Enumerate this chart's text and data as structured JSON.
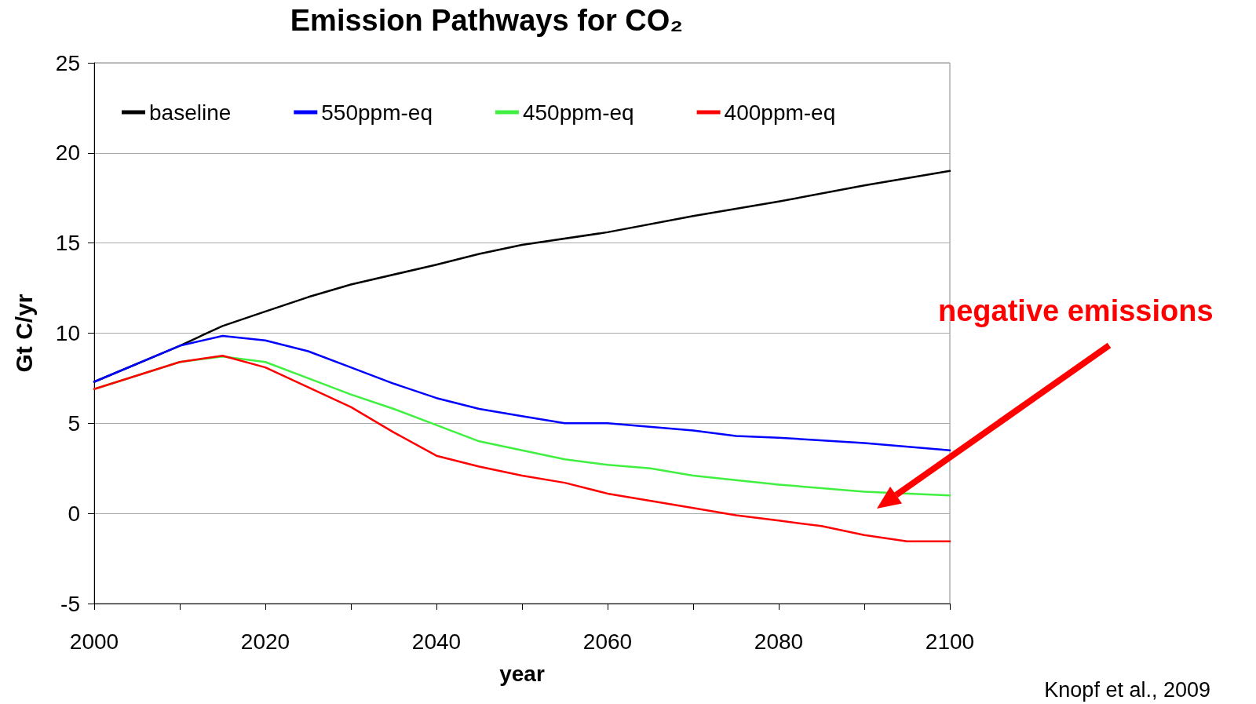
{
  "chart_data": {
    "type": "line",
    "title": "Emission Pathways for CO₂",
    "xlabel": "year",
    "ylabel": "Gt C/yr",
    "xlim": [
      2000,
      2100
    ],
    "xticks": [
      2000,
      {
        "value": 2010,
        "label": null
      },
      2020,
      {
        "value": 2030,
        "label": null
      },
      2040,
      {
        "value": 2050,
        "label": null
      },
      2060,
      {
        "value": 2070,
        "label": null
      },
      2080,
      {
        "value": 2090,
        "label": null
      },
      2100
    ],
    "ylim": [
      -5,
      25
    ],
    "yticks": [
      -5,
      0,
      5,
      10,
      15,
      20,
      25
    ],
    "grid": "y",
    "legend": "top",
    "marker": "none",
    "line_style": "solid",
    "series": [
      {
        "name": "baseline",
        "color": "#000000",
        "x": [
          2000,
          2010,
          2015,
          2020,
          2025,
          2030,
          2040,
          2045,
          2050,
          2060,
          2070,
          2080,
          2090,
          2100
        ],
        "values": [
          7.3,
          9.3,
          10.4,
          11.2,
          12.0,
          12.7,
          13.8,
          14.4,
          14.9,
          15.6,
          16.5,
          17.3,
          18.2,
          19.0
        ]
      },
      {
        "name": "550ppm-eq",
        "color": "#0000ff",
        "x": [
          2000,
          2010,
          2015,
          2020,
          2025,
          2030,
          2035,
          2040,
          2045,
          2050,
          2055,
          2060,
          2070,
          2075,
          2080,
          2090,
          2100
        ],
        "values": [
          7.3,
          9.3,
          9.85,
          9.6,
          9.0,
          8.1,
          7.2,
          6.4,
          5.8,
          5.4,
          5.0,
          5.0,
          4.6,
          4.3,
          4.2,
          3.9,
          3.5
        ]
      },
      {
        "name": "450ppm-eq",
        "color": "#40f040",
        "x": [
          2000,
          2010,
          2015,
          2020,
          2025,
          2030,
          2035,
          2040,
          2045,
          2050,
          2055,
          2060,
          2065,
          2070,
          2080,
          2090,
          2100
        ],
        "values": [
          6.9,
          8.4,
          8.7,
          8.4,
          7.5,
          6.6,
          5.8,
          4.9,
          4.0,
          3.5,
          3.0,
          2.7,
          2.5,
          2.1,
          1.6,
          1.2,
          1.0
        ]
      },
      {
        "name": "400ppm-eq",
        "color": "#ff0000",
        "x": [
          2000,
          2010,
          2015,
          2020,
          2025,
          2030,
          2035,
          2040,
          2045,
          2050,
          2055,
          2060,
          2070,
          2075,
          2080,
          2085,
          2090,
          2095,
          2100
        ],
        "values": [
          6.9,
          8.4,
          8.75,
          8.1,
          7.0,
          5.9,
          4.5,
          3.2,
          2.6,
          2.1,
          1.7,
          1.1,
          0.3,
          -0.1,
          -0.4,
          -0.7,
          -1.2,
          -1.55,
          -1.55
        ]
      }
    ],
    "annotations": [
      "negative emissions",
      "Knopf et al., 2009"
    ]
  }
}
